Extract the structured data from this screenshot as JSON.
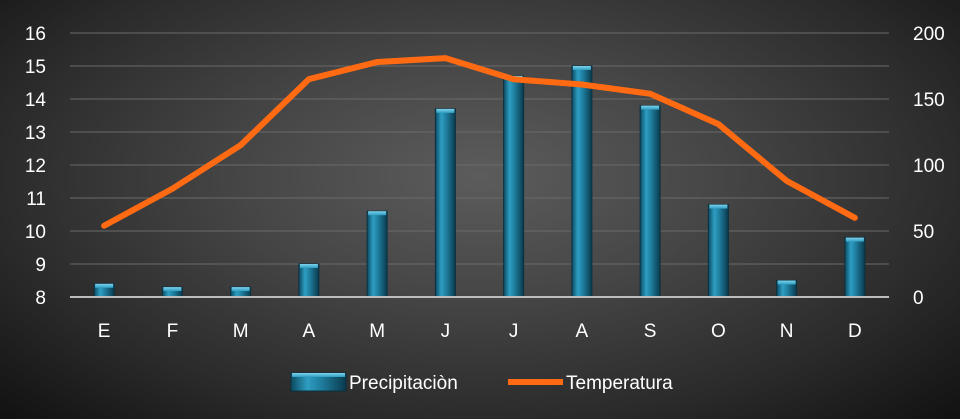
{
  "chart_data": {
    "type": "bar",
    "categories": [
      "E",
      "F",
      "M",
      "A",
      "M",
      "J",
      "J",
      "A",
      "S",
      "O",
      "N",
      "D"
    ],
    "series": [
      {
        "name": "Precipitaciòn",
        "type": "bar",
        "axis": "left",
        "color": "#2b8fb0",
        "values": [
          8.4,
          8.3,
          8.3,
          9.0,
          10.6,
          13.7,
          14.7,
          15.0,
          13.8,
          10.8,
          8.5,
          9.8
        ]
      },
      {
        "name": "Temperatura",
        "type": "line",
        "axis": "right",
        "color": "#ff6a13",
        "values": [
          54,
          82,
          115,
          165,
          178,
          181,
          165,
          161,
          154,
          131,
          88,
          60
        ]
      }
    ],
    "y_left": {
      "min": 8,
      "max": 16,
      "ticks": [
        "8",
        "9",
        "10",
        "11",
        "12",
        "13",
        "14",
        "15",
        "16"
      ]
    },
    "y_right": {
      "min": 0,
      "max": 200,
      "ticks": [
        "0",
        "50",
        "100",
        "150",
        "200"
      ]
    },
    "title": "",
    "xlabel": "",
    "ylabel": "",
    "grid": true,
    "legend_position": "bottom"
  }
}
